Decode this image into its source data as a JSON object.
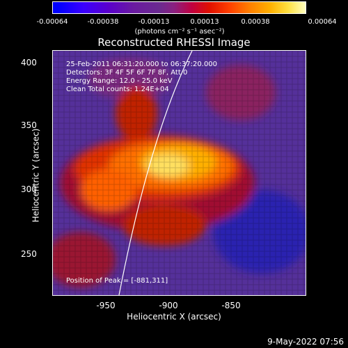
{
  "colorbar": {
    "ticks": [
      "-0.00064",
      "-0.00038",
      "-0.00013",
      "0.00013",
      "0.00038",
      "0.00064"
    ],
    "units": "(photons cm⁻² s⁻¹ asec⁻²)"
  },
  "title": "Reconstructed RHESSI Image",
  "annotations": {
    "time": "25-Feb-2011 06:31:20.000 to 06:37:20.000",
    "detectors": "Detectors: 3F 4F 5F 6F 7F 8F, Att 0",
    "energy": "Energy Range: 12.0 - 25.0 keV",
    "method": "Clean     Total counts: 1.24E+04",
    "peak": "Position of Peak = [-881,311]"
  },
  "axes": {
    "xlabel": "Heliocentric X (arcsec)",
    "ylabel": "Heliocentric Y (arcsec)",
    "xticks": [
      "-950",
      "-900",
      "-850"
    ],
    "yticks": [
      "400",
      "350",
      "300",
      "250"
    ]
  },
  "datestamp": "9-May-2022 07:56"
}
